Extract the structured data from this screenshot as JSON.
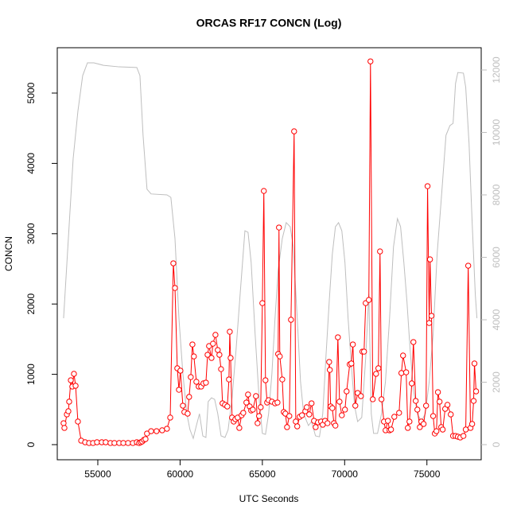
{
  "chart_data": {
    "type": "line",
    "title": "ORCAS RF17 CONCN (Log)",
    "x_label": "UTC Seconds",
    "y_label": "CONCN",
    "xlim": [
      52536,
      78300
    ],
    "xticks": [
      55000,
      60000,
      65000,
      70000,
      75000
    ],
    "ylim": [
      -215,
      5645
    ],
    "yticks": [
      0,
      1000,
      2000,
      3000,
      4000,
      5000
    ],
    "y2lim": [
      -484,
      12713
    ],
    "y2ticks": [
      0,
      2000,
      4000,
      6000,
      8000,
      10000,
      12000
    ],
    "y2_color": "#bebebe",
    "series": [
      {
        "color": "#ff0000",
        "markers": true,
        "x": [
          52920,
          52970,
          53120,
          53210,
          53260,
          53360,
          53450,
          53550,
          53650,
          53790,
          53990,
          54230,
          54470,
          54710,
          54950,
          55240,
          55480,
          55770,
          56010,
          56300,
          56550,
          56840,
          57130,
          57370,
          57510,
          57610,
          57700,
          57800,
          57900,
          57990,
          58240,
          58570,
          58910,
          59200,
          59400,
          59590,
          59690,
          59830,
          59930,
          60020,
          60170,
          60260,
          60460,
          60550,
          60650,
          60750,
          60840,
          60990,
          61130,
          61280,
          61420,
          61570,
          61670,
          61760,
          61910,
          62000,
          62150,
          62290,
          62390,
          62490,
          62580,
          62730,
          62870,
          62970,
          63020,
          63070,
          63160,
          63260,
          63360,
          63500,
          63600,
          63740,
          63840,
          64030,
          64130,
          64230,
          64320,
          64420,
          64610,
          64710,
          64800,
          64900,
          65000,
          65090,
          65190,
          65290,
          65380,
          65580,
          65770,
          65920,
          65960,
          66010,
          66060,
          66210,
          66300,
          66400,
          66500,
          66640,
          66740,
          66930,
          67030,
          67120,
          67270,
          67410,
          67610,
          67700,
          67850,
          67990,
          68140,
          68240,
          68380,
          68570,
          68670,
          68810,
          68960,
          69060,
          69100,
          69150,
          69250,
          69350,
          69440,
          69590,
          69690,
          69830,
          70020,
          70120,
          70310,
          70410,
          70500,
          70650,
          70790,
          70990,
          71080,
          71180,
          71280,
          71470,
          71570,
          71710,
          71910,
          72050,
          72150,
          72240,
          72390,
          72490,
          72630,
          72730,
          72820,
          73020,
          73310,
          73450,
          73550,
          73740,
          73840,
          73940,
          74080,
          74180,
          74320,
          74420,
          74570,
          74660,
          74800,
          74950,
          75040,
          75140,
          75190,
          75280,
          75380,
          75480,
          75580,
          75670,
          75770,
          75870,
          75960,
          76110,
          76250,
          76450,
          76590,
          76740,
          76880,
          77030,
          77220,
          77360,
          77510,
          77650,
          77750,
          77840,
          77890,
          77990
        ],
        "values": [
          305,
          238,
          430,
          475,
          611,
          916,
          826,
          1007,
          837,
          328,
          57,
          34,
          23,
          23,
          34,
          34,
          34,
          23,
          23,
          23,
          23,
          23,
          23,
          34,
          23,
          34,
          45,
          68,
          79,
          158,
          192,
          192,
          204,
          226,
          385,
          2579,
          2228,
          1086,
          780,
          1052,
          554,
          464,
          441,
          679,
          961,
          1425,
          1255,
          894,
          826,
          826,
          871,
          882,
          1278,
          1402,
          1233,
          1436,
          1561,
          1346,
          1278,
          1074,
          588,
          566,
          543,
          927,
          1606,
          1233,
          385,
          328,
          362,
          385,
          238,
          418,
          452,
          599,
          713,
          543,
          486,
          498,
          690,
          305,
          407,
          532,
          2013,
          3608,
          916,
          599,
          633,
          611,
          588,
          599,
          1289,
          3088,
          1255,
          927,
          464,
          441,
          249,
          407,
          1776,
          4456,
          328,
          260,
          396,
          418,
          475,
          532,
          430,
          588,
          339,
          249,
          317,
          328,
          283,
          339,
          305,
          1176,
          1063,
          543,
          520,
          305,
          271,
          1527,
          611,
          418,
          498,
          758,
          1142,
          1154,
          1425,
          554,
          735,
          690,
          1323,
          1323,
          2013,
          2058,
          5451,
          645,
          1007,
          1086,
          2748,
          645,
          328,
          204,
          339,
          204,
          215,
          396,
          452,
          1018,
          1267,
          1029,
          238,
          328,
          871,
          1459,
          622,
          498,
          249,
          328,
          294,
          554,
          3676,
          1730,
          2635,
          1832,
          407,
          158,
          192,
          746,
          611,
          249,
          215,
          509,
          566,
          430,
          124,
          124,
          113,
          102,
          124,
          215,
          2545,
          238,
          294,
          622,
          1154,
          758
        ]
      },
      {
        "color": "#bebebe",
        "axis": "y2",
        "x": [
          52920,
          53210,
          53500,
          53790,
          54080,
          54370,
          54760,
          55340,
          56300,
          57370,
          57560,
          57750,
          57990,
          58240,
          59200,
          59440,
          59690,
          59930,
          60170,
          60410,
          60600,
          60800,
          60990,
          61180,
          61380,
          61570,
          61710,
          61910,
          62100,
          62290,
          62490,
          62730,
          62920,
          63160,
          63400,
          63650,
          63940,
          64130,
          64320,
          64560,
          64800,
          65000,
          65190,
          65380,
          65580,
          65770,
          65960,
          66210,
          66450,
          66690,
          66880,
          67120,
          67320,
          67510,
          67800,
          67990,
          68230,
          68470,
          68670,
          68860,
          69060,
          69250,
          69440,
          69630,
          69830,
          70020,
          70210,
          70410,
          70600,
          70790,
          71040,
          71280,
          71470,
          71620,
          71760,
          72000,
          72240,
          72480,
          72730,
          72970,
          73210,
          73400,
          73600,
          73790,
          73980,
          74180,
          74420,
          74660,
          74900,
          75140,
          75380,
          75620,
          75910,
          76160,
          76400,
          76590,
          76740,
          76880,
          77220,
          77360,
          77560,
          77750,
          77940,
          78040
        ],
        "values": [
          4050,
          6600,
          9150,
          10680,
          11820,
          12230,
          12230,
          12150,
          12100,
          12080,
          11820,
          9910,
          8180,
          8030,
          8000,
          7920,
          6600,
          4050,
          2270,
          990,
          480,
          200,
          610,
          990,
          280,
          230,
          1380,
          1500,
          1450,
          990,
          280,
          230,
          480,
          1500,
          3030,
          4820,
          6850,
          6800,
          5830,
          3540,
          1500,
          360,
          330,
          990,
          2270,
          4050,
          5580,
          6600,
          7110,
          6980,
          6340,
          4050,
          2010,
          990,
          610,
          740,
          280,
          250,
          990,
          2780,
          4560,
          6090,
          6980,
          7110,
          6850,
          5830,
          4050,
          2520,
          1250,
          740,
          870,
          2780,
          4820,
          990,
          360,
          360,
          990,
          2010,
          4050,
          6340,
          7240,
          6980,
          5830,
          4560,
          3030,
          1760,
          990,
          740,
          990,
          2010,
          3540,
          6090,
          8130,
          9910,
          10220,
          10290,
          11570,
          11920,
          11900,
          11440,
          9660,
          7110,
          4820,
          4050
        ]
      }
    ]
  }
}
